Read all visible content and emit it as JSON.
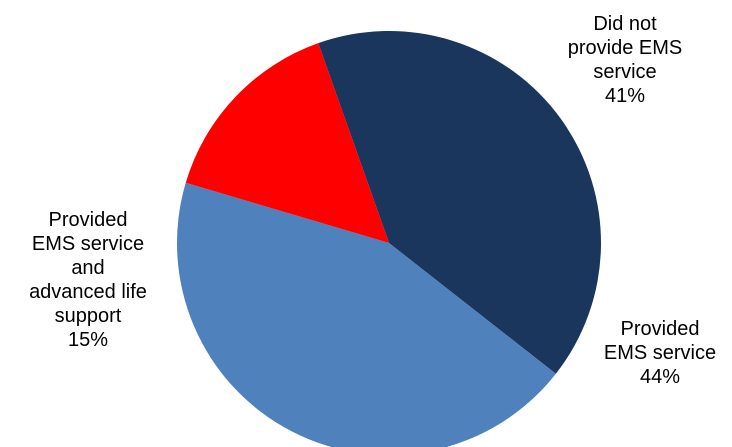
{
  "chart_data": {
    "type": "pie",
    "title": "",
    "slices": [
      {
        "label_lines": [
          "Did not",
          "provide EMS",
          "service"
        ],
        "value": 41,
        "value_label": "41%",
        "color": "#1b365d"
      },
      {
        "label_lines": [
          "Provided",
          "EMS service"
        ],
        "value": 44,
        "value_label": "44%",
        "color": "#4f81bd"
      },
      {
        "label_lines": [
          "Provided",
          "EMS service",
          "and",
          "advanced life",
          "support"
        ],
        "value": 15,
        "value_label": "15%",
        "color": "#ff0000"
      }
    ],
    "legend": "none",
    "label_position": "outside"
  }
}
